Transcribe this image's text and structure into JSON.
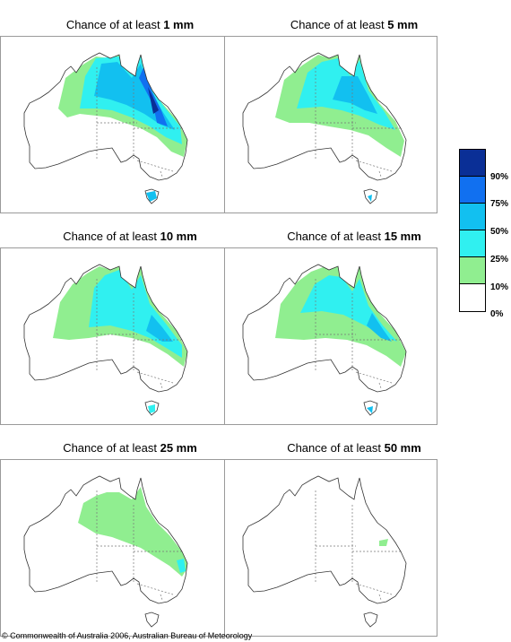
{
  "panels": [
    {
      "prefix": "Chance of at least ",
      "amount": "1 mm"
    },
    {
      "prefix": "Chance of at least ",
      "amount": "5 mm"
    },
    {
      "prefix": "Chance of at least ",
      "amount": "10 mm"
    },
    {
      "prefix": "Chance of at least ",
      "amount": "15 mm"
    },
    {
      "prefix": "Chance of at least ",
      "amount": "25 mm"
    },
    {
      "prefix": "Chance of at least ",
      "amount": "50 mm"
    }
  ],
  "legend": {
    "colors": [
      "#0a2f96",
      "#1170f0",
      "#12c0f0",
      "#30f0f0",
      "#90ee90",
      "#ffffff"
    ],
    "labels": [
      "90%",
      "75%",
      "50%",
      "25%",
      "10%",
      "0%"
    ]
  },
  "copyright": "© Commonwealth of Australia 2006, Australian Bureau of Meteorology"
}
